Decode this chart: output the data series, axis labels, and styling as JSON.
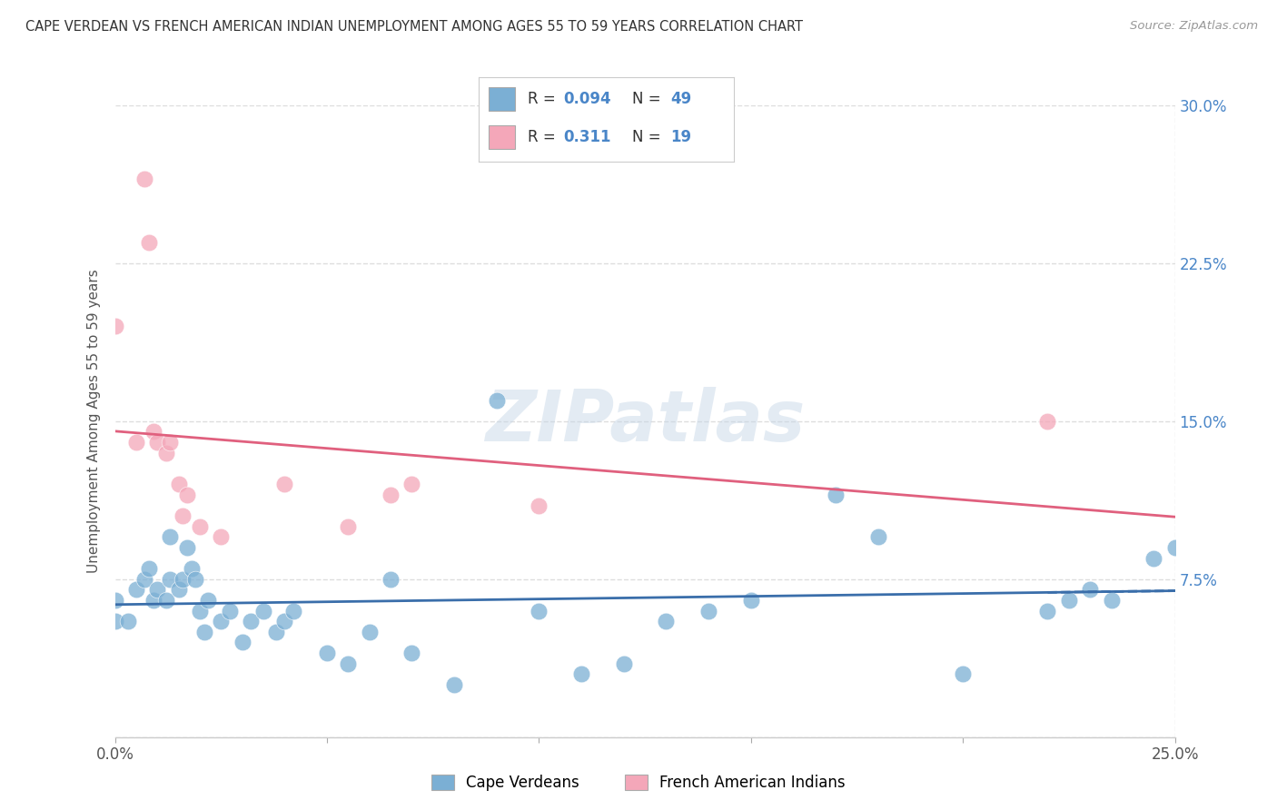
{
  "title": "CAPE VERDEAN VS FRENCH AMERICAN INDIAN UNEMPLOYMENT AMONG AGES 55 TO 59 YEARS CORRELATION CHART",
  "source": "Source: ZipAtlas.com",
  "ylabel": "Unemployment Among Ages 55 to 59 years",
  "xlim": [
    0,
    0.25
  ],
  "ylim": [
    0,
    0.3
  ],
  "xticks": [
    0.0,
    0.05,
    0.1,
    0.15,
    0.2,
    0.25
  ],
  "xtick_labels": [
    "0.0%",
    "",
    "",
    "",
    "",
    "25.0%"
  ],
  "yticks": [
    0.0,
    0.075,
    0.15,
    0.225,
    0.3
  ],
  "ytick_labels_right": [
    "",
    "7.5%",
    "15.0%",
    "22.5%",
    "30.0%"
  ],
  "blue_R": 0.094,
  "blue_N": 49,
  "pink_R": 0.311,
  "pink_N": 19,
  "blue_color": "#7bafd4",
  "pink_color": "#f4a7b9",
  "blue_line_color": "#3a6eaa",
  "pink_line_color": "#e0607e",
  "legend_label_blue": "Cape Verdeans",
  "legend_label_pink": "French American Indians",
  "blue_x": [
    0.0,
    0.0,
    0.003,
    0.005,
    0.007,
    0.008,
    0.009,
    0.01,
    0.012,
    0.013,
    0.013,
    0.015,
    0.016,
    0.017,
    0.018,
    0.019,
    0.02,
    0.021,
    0.022,
    0.025,
    0.027,
    0.03,
    0.032,
    0.035,
    0.038,
    0.04,
    0.042,
    0.05,
    0.055,
    0.06,
    0.065,
    0.07,
    0.08,
    0.09,
    0.1,
    0.11,
    0.12,
    0.13,
    0.14,
    0.15,
    0.17,
    0.18,
    0.2,
    0.22,
    0.225,
    0.23,
    0.235,
    0.245,
    0.25
  ],
  "blue_y": [
    0.055,
    0.065,
    0.055,
    0.07,
    0.075,
    0.08,
    0.065,
    0.07,
    0.065,
    0.075,
    0.095,
    0.07,
    0.075,
    0.09,
    0.08,
    0.075,
    0.06,
    0.05,
    0.065,
    0.055,
    0.06,
    0.045,
    0.055,
    0.06,
    0.05,
    0.055,
    0.06,
    0.04,
    0.035,
    0.05,
    0.075,
    0.04,
    0.025,
    0.16,
    0.06,
    0.03,
    0.035,
    0.055,
    0.06,
    0.065,
    0.115,
    0.095,
    0.03,
    0.06,
    0.065,
    0.07,
    0.065,
    0.085,
    0.09
  ],
  "pink_x": [
    0.0,
    0.005,
    0.007,
    0.008,
    0.009,
    0.01,
    0.012,
    0.013,
    0.015,
    0.016,
    0.017,
    0.02,
    0.025,
    0.04,
    0.055,
    0.065,
    0.07,
    0.1,
    0.22
  ],
  "pink_y": [
    0.195,
    0.14,
    0.265,
    0.235,
    0.145,
    0.14,
    0.135,
    0.14,
    0.12,
    0.105,
    0.115,
    0.1,
    0.095,
    0.12,
    0.1,
    0.115,
    0.12,
    0.11,
    0.15
  ],
  "background_color": "#ffffff",
  "grid_color": "#dddddd",
  "watermark": "ZIPatlas"
}
